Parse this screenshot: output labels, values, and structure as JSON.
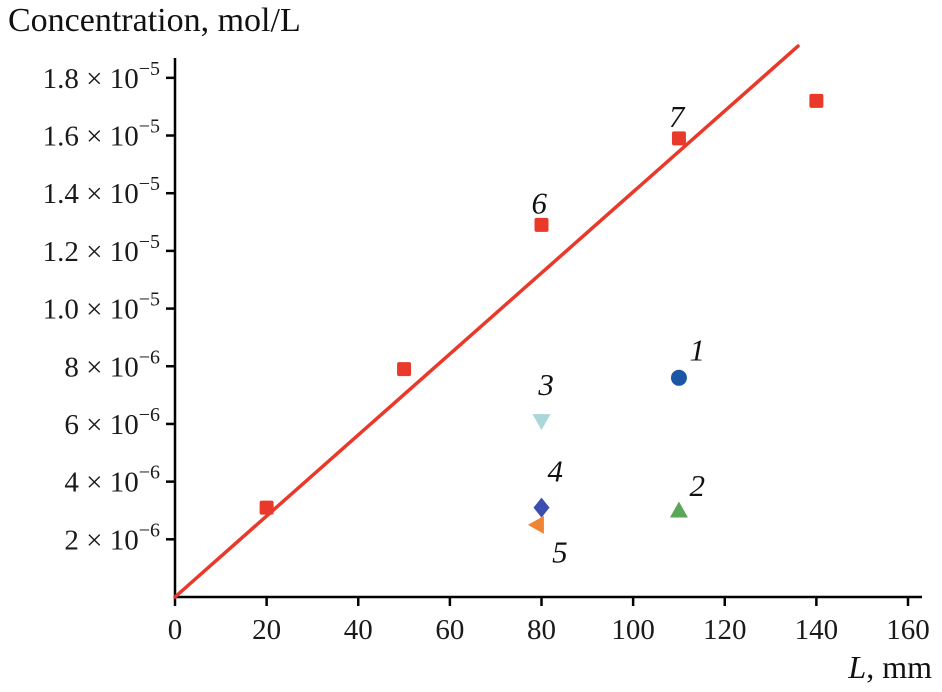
{
  "chart_data": {
    "type": "scatter",
    "title": "Concentration, mol/L",
    "xlabel": "L, mm",
    "xlabel_parts": {
      "italic": "L",
      "rest": ", mm"
    },
    "ylabel": "Concentration, mol/L",
    "xlim": [
      0,
      160
    ],
    "ylim": [
      0,
      1.9e-05
    ],
    "grid": false,
    "legend": "none",
    "x_ticks": [
      0,
      20,
      40,
      60,
      80,
      100,
      120,
      140,
      160
    ],
    "y_ticks": [
      {
        "value": 2e-06,
        "base": "2 × 10",
        "exp": "−6"
      },
      {
        "value": 4e-06,
        "base": "4 × 10",
        "exp": "−6"
      },
      {
        "value": 6e-06,
        "base": "6 × 10",
        "exp": "−6"
      },
      {
        "value": 8e-06,
        "base": "8 × 10",
        "exp": "−6"
      },
      {
        "value": 1e-05,
        "base": "1.0 × 10",
        "exp": "−5"
      },
      {
        "value": 1.2e-05,
        "base": "1.2 × 10",
        "exp": "−5"
      },
      {
        "value": 1.4e-05,
        "base": "1.4 × 10",
        "exp": "−5"
      },
      {
        "value": 1.6e-05,
        "base": "1.6 × 10",
        "exp": "−5"
      },
      {
        "value": 1.8e-05,
        "base": "1.8 × 10",
        "exp": "−5"
      }
    ],
    "line": {
      "name": "calibration-line",
      "color": "#e8392b",
      "x": [
        0,
        136
      ],
      "y": [
        0,
        1.91e-05
      ]
    },
    "series": [
      {
        "name": "red-squares",
        "marker": "square",
        "color": "#e8392b",
        "points": [
          [
            20,
            3.1e-06
          ],
          [
            50,
            7.9e-06
          ],
          [
            80,
            1.29e-05
          ],
          [
            110,
            1.59e-05
          ],
          [
            140,
            1.72e-05
          ]
        ]
      },
      {
        "name": "sample-1",
        "marker": "circle",
        "color": "#1b57a5",
        "points": [
          [
            110,
            7.6e-06
          ]
        ]
      },
      {
        "name": "sample-2",
        "marker": "triangle-up",
        "color": "#5aa75a",
        "points": [
          [
            110,
            3e-06
          ]
        ]
      },
      {
        "name": "sample-3",
        "marker": "triangle-down",
        "color": "#a9d7da",
        "points": [
          [
            80,
            6.1e-06
          ]
        ]
      },
      {
        "name": "sample-4",
        "marker": "diamond",
        "color": "#3b4fb1",
        "points": [
          [
            80,
            3.1e-06
          ]
        ]
      },
      {
        "name": "sample-5",
        "marker": "triangle-left",
        "color": "#f08433",
        "points": [
          [
            79,
            2.5e-06
          ]
        ]
      }
    ],
    "annotations": [
      {
        "text": "1",
        "x": 114,
        "y": 8.2e-06
      },
      {
        "text": "2",
        "x": 114,
        "y": 3.5e-06
      },
      {
        "text": "3",
        "x": 81,
        "y": 7e-06
      },
      {
        "text": "4",
        "x": 83,
        "y": 4e-06
      },
      {
        "text": "5",
        "x": 84,
        "y": 1.2e-06
      },
      {
        "text": "6",
        "x": 79.5,
        "y": 1.33e-05
      },
      {
        "text": "7",
        "x": 109.5,
        "y": 1.63e-05
      }
    ],
    "axis_color": "#000000"
  }
}
